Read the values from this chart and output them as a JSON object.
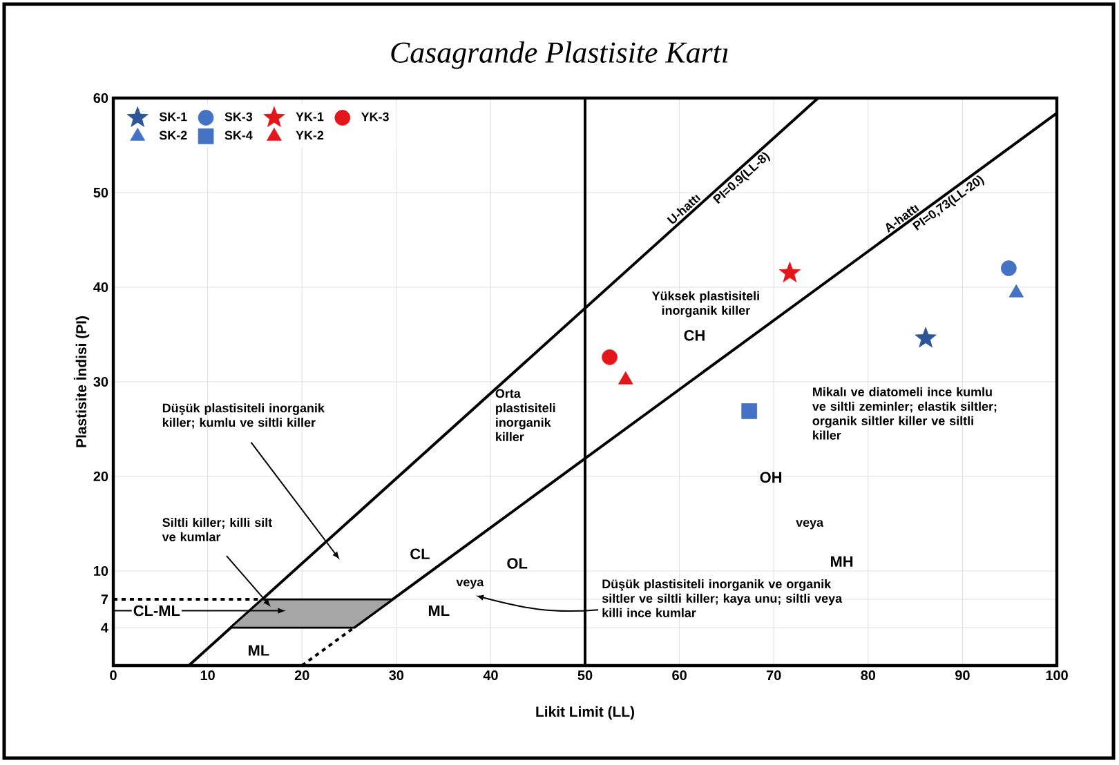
{
  "chart_data": {
    "type": "scatter",
    "title": "Casagrande Plastisite Kartı",
    "xlabel": "Likit Limit (LL)",
    "ylabel": "Plastisite İndisi (PI)",
    "xlim": [
      0,
      100
    ],
    "ylim": [
      0,
      60
    ],
    "xticks": [
      0,
      10,
      20,
      30,
      40,
      50,
      60,
      70,
      80,
      90,
      100
    ],
    "yticks": [
      4,
      7,
      10,
      20,
      30,
      40,
      50,
      60
    ],
    "grid": true,
    "legend": "top left",
    "series": [
      {
        "type": "line",
        "color": "#000000",
        "x": [
          8,
          74.7
        ],
        "values": [
          0,
          60
        ]
      },
      {
        "type": "line",
        "color": "#000000",
        "line_style": "dashed",
        "x": [
          20,
          25.5
        ],
        "values": [
          0,
          4
        ]
      },
      {
        "type": "line",
        "color": "#000000",
        "x": [
          25.5,
          100
        ],
        "values": [
          4,
          58.4
        ]
      },
      {
        "type": "line",
        "color": "#000000",
        "line_style": "dashed",
        "x": [
          0,
          15.8
        ],
        "values": [
          7,
          7
        ]
      },
      {
        "type": "area",
        "color": "#000000",
        "x": [
          12.4,
          25.5,
          29.6,
          15.8,
          12.4
        ],
        "values": [
          4,
          4,
          7,
          7,
          4
        ]
      },
      {
        "name": "SK-1",
        "color": "#2e5597",
        "marker": "star",
        "x": [
          86.1
        ],
        "values": [
          34.6
        ]
      },
      {
        "name": "SK-2",
        "color": "#4472c4",
        "marker": "triangle",
        "x": [
          95.7
        ],
        "values": [
          39.4
        ]
      },
      {
        "name": "SK-3",
        "color": "#4472c4",
        "marker": "circle",
        "x": [
          94.9
        ],
        "values": [
          42
        ]
      },
      {
        "name": "SK-4",
        "color": "#4472c4",
        "marker": "square",
        "x": [
          67.4
        ],
        "values": [
          26.9
        ]
      },
      {
        "name": "YK-1",
        "color": "#e3161b",
        "marker": "star",
        "x": [
          71.7
        ],
        "values": [
          41.5
        ]
      },
      {
        "name": "YK-2",
        "color": "#e3161b",
        "marker": "triangle",
        "x": [
          54.3
        ],
        "values": [
          30.2
        ]
      },
      {
        "name": "YK-3",
        "color": "#e3161b",
        "marker": "circle",
        "x": [
          52.6
        ],
        "values": [
          32.6
        ]
      }
    ],
    "ref_lines": [
      {
        "axis": "x",
        "value": 50,
        "color": "#000000"
      }
    ],
    "annotations": [
      {
        "text": "U-hattı",
        "x": 61,
        "y": 47.7
      },
      {
        "text": "PI=0.9(LL-8)",
        "x": 66,
        "y": 52.2
      },
      {
        "text": "A-hattı",
        "x": 84,
        "y": 46.7
      },
      {
        "text": "PI=0,73(LL-20)",
        "x": 88,
        "y": 49.6
      },
      "Yüksek plastisiteli inorganik killer",
      "CH",
      "Mikalı ve diatomeli ince kumlu ve siltli zeminler; elastik siltler; organik siltler killer ve siltli killer",
      "OH",
      "veya",
      "MH",
      "Orta plastisiteli inorganik killer",
      "Düşük plastisiteli inorganik killer; kumlu ve siltli killer",
      "Siltli killer; killi silt ve kumlar",
      "CL",
      "OL",
      "veya",
      "ML",
      "ML",
      "CL-ML",
      "Düşük plastisiteli inorganik ve organik siltler ve siltli killer; kaya unu; siltli veya killi ince kumlar"
    ]
  }
}
